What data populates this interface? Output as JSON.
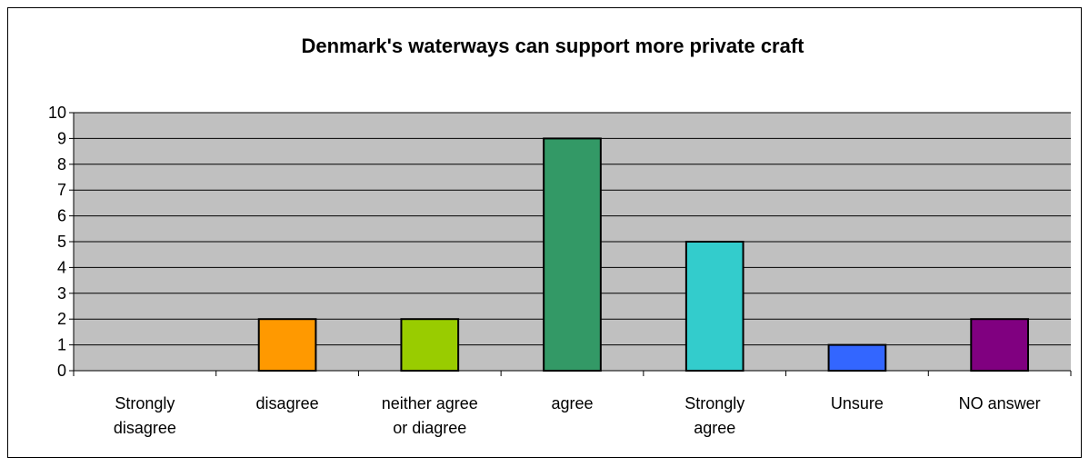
{
  "chart_data": {
    "type": "bar",
    "title": "Denmark's waterways can support more private craft",
    "categories": [
      [
        "Strongly",
        "disagree"
      ],
      [
        "disagree"
      ],
      [
        "neither agree",
        "or diagree"
      ],
      [
        "agree"
      ],
      [
        "Strongly",
        "agree"
      ],
      [
        "Unsure"
      ],
      [
        "NO answer"
      ]
    ],
    "values": [
      0,
      2,
      2,
      9,
      5,
      1,
      2
    ],
    "colors": [
      "#999999",
      "#ff9900",
      "#99cc00",
      "#339966",
      "#33cccc",
      "#3366ff",
      "#800080"
    ],
    "ylim": [
      0,
      10
    ],
    "yticks": [
      "0",
      "1",
      "2",
      "3",
      "4",
      "5",
      "6",
      "7",
      "8",
      "9",
      "10"
    ],
    "plot_background": "#c0c0c0",
    "grid": true,
    "legend": "none"
  }
}
